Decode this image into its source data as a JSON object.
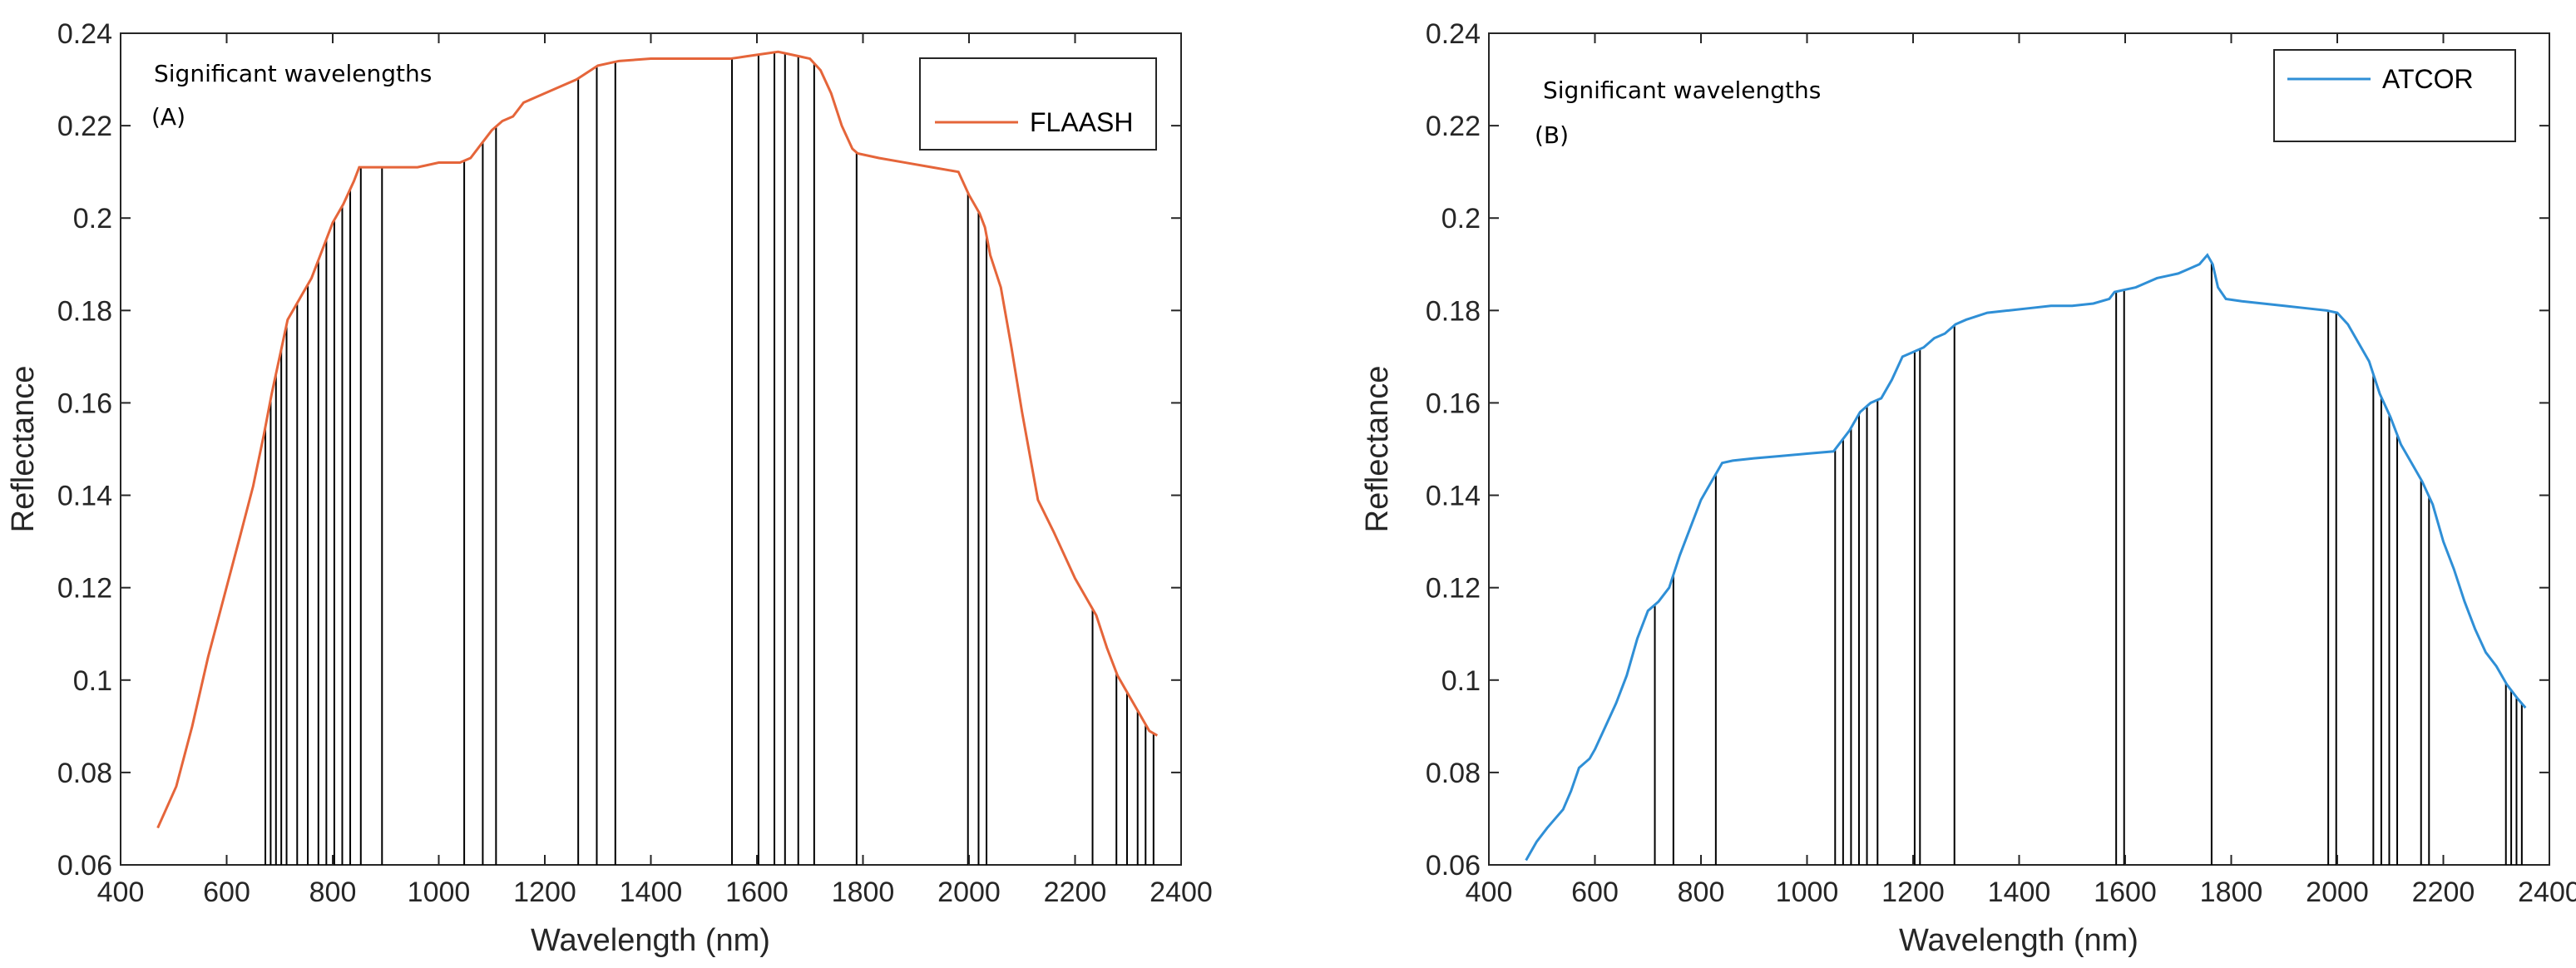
{
  "chart_data": [
    {
      "type": "line",
      "panel_label": "(A)",
      "annotation": "Significant wavelengths",
      "xlabel": "Wavelength (nm)",
      "ylabel": "Reflectance",
      "xlim": [
        400,
        2400
      ],
      "ylim": [
        0.06,
        0.24
      ],
      "xticks": [
        "400",
        "600",
        "800",
        "1000",
        "1200",
        "1400",
        "1600",
        "1800",
        "2000",
        "2200",
        "2400"
      ],
      "yticks": [
        "0.06",
        "0.08",
        "0.1",
        "0.12",
        "0.14",
        "0.16",
        "0.18",
        "0.2",
        "0.22",
        "0.24"
      ],
      "legend": {
        "label": "FLAASH",
        "color": "#E5653A",
        "position": "top-right"
      },
      "series": [
        {
          "name": "FLAASH",
          "color": "#E5653A",
          "x": [
            470,
            505,
            535,
            565,
            595,
            625,
            650,
            670,
            685,
            700,
            715,
            725,
            740,
            760,
            780,
            800,
            820,
            840,
            850,
            880,
            920,
            960,
            1000,
            1040,
            1060,
            1080,
            1100,
            1120,
            1140,
            1160,
            1180,
            1220,
            1260,
            1300,
            1340,
            1400,
            1450,
            1500,
            1550,
            1580,
            1610,
            1640,
            1660,
            1680,
            1700,
            1720,
            1740,
            1760,
            1780,
            1790,
            1830,
            1880,
            1930,
            1980,
            2000,
            2020,
            2030,
            2040,
            2060,
            2080,
            2100,
            2130,
            2160,
            2200,
            2240,
            2260,
            2280,
            2300,
            2320,
            2340,
            2355
          ],
          "y": [
            0.068,
            0.077,
            0.09,
            0.105,
            0.118,
            0.131,
            0.142,
            0.153,
            0.162,
            0.17,
            0.178,
            0.18,
            0.183,
            0.187,
            0.193,
            0.199,
            0.203,
            0.208,
            0.211,
            0.211,
            0.211,
            0.211,
            0.212,
            0.212,
            0.213,
            0.216,
            0.219,
            0.221,
            0.222,
            0.225,
            0.226,
            0.228,
            0.23,
            0.233,
            0.234,
            0.2345,
            0.2345,
            0.2345,
            0.2345,
            0.235,
            0.2355,
            0.236,
            0.2355,
            0.235,
            0.2345,
            0.232,
            0.227,
            0.22,
            0.215,
            0.214,
            0.213,
            0.212,
            0.211,
            0.21,
            0.205,
            0.201,
            0.198,
            0.192,
            0.185,
            0.172,
            0.158,
            0.139,
            0.132,
            0.122,
            0.114,
            0.107,
            0.101,
            0.097,
            0.093,
            0.089,
            0.088
          ]
        }
      ],
      "significant_wavelengths": [
        673,
        683,
        693,
        703,
        713,
        733,
        753,
        773,
        788,
        803,
        818,
        833,
        853,
        893,
        1048,
        1083,
        1108,
        1263,
        1298,
        1333,
        1553,
        1603,
        1633,
        1653,
        1678,
        1708,
        1788,
        1998,
        2018,
        2033,
        2233,
        2278,
        2298,
        2318,
        2333,
        2348
      ]
    },
    {
      "type": "line",
      "panel_label": "(B)",
      "annotation": "Significant wavelengths",
      "xlabel": "Wavelength (nm)",
      "ylabel": "Reflectance",
      "xlim": [
        400,
        2400
      ],
      "ylim": [
        0.06,
        0.24
      ],
      "xticks": [
        "400",
        "600",
        "800",
        "1000",
        "1200",
        "1400",
        "1600",
        "1800",
        "2000",
        "2200",
        "2400"
      ],
      "yticks": [
        "0.06",
        "0.08",
        "0.1",
        "0.12",
        "0.14",
        "0.16",
        "0.18",
        "0.2",
        "0.22",
        "0.24"
      ],
      "legend": {
        "label": "ATCOR",
        "color": "#2F8FD6",
        "position": "top-right"
      },
      "series": [
        {
          "name": "ATCOR",
          "color": "#2F8FD6",
          "x": [
            470,
            490,
            510,
            525,
            540,
            555,
            570,
            580,
            590,
            600,
            620,
            640,
            660,
            680,
            700,
            720,
            740,
            760,
            780,
            800,
            820,
            840,
            860,
            900,
            950,
            1000,
            1050,
            1060,
            1080,
            1100,
            1120,
            1140,
            1160,
            1180,
            1200,
            1220,
            1240,
            1260,
            1280,
            1300,
            1340,
            1380,
            1420,
            1460,
            1500,
            1540,
            1570,
            1580,
            1600,
            1620,
            1640,
            1660,
            1680,
            1700,
            1720,
            1740,
            1755,
            1765,
            1775,
            1790,
            1820,
            1860,
            1900,
            1940,
            1980,
            2000,
            2020,
            2040,
            2060,
            2080,
            2100,
            2120,
            2140,
            2160,
            2180,
            2200,
            2220,
            2240,
            2260,
            2280,
            2300,
            2320,
            2340,
            2355
          ],
          "y": [
            0.061,
            0.065,
            0.068,
            0.07,
            0.072,
            0.076,
            0.081,
            0.082,
            0.083,
            0.085,
            0.09,
            0.095,
            0.101,
            0.109,
            0.115,
            0.117,
            0.12,
            0.127,
            0.133,
            0.139,
            0.143,
            0.147,
            0.1475,
            0.148,
            0.1485,
            0.149,
            0.1495,
            0.151,
            0.154,
            0.158,
            0.16,
            0.161,
            0.165,
            0.17,
            0.171,
            0.172,
            0.174,
            0.175,
            0.177,
            0.178,
            0.1795,
            0.18,
            0.1805,
            0.181,
            0.181,
            0.1815,
            0.1825,
            0.184,
            0.1845,
            0.185,
            0.186,
            0.187,
            0.1875,
            0.188,
            0.189,
            0.19,
            0.192,
            0.19,
            0.185,
            0.1825,
            0.182,
            0.1815,
            0.181,
            0.1805,
            0.18,
            0.1795,
            0.177,
            0.173,
            0.169,
            0.162,
            0.157,
            0.151,
            0.147,
            0.143,
            0.138,
            0.13,
            0.124,
            0.117,
            0.111,
            0.106,
            0.103,
            0.099,
            0.096,
            0.094
          ]
        }
      ],
      "significant_wavelengths": [
        713,
        748,
        828,
        1053,
        1068,
        1083,
        1098,
        1113,
        1133,
        1203,
        1213,
        1278,
        1583,
        1598,
        1763,
        1983,
        1998,
        2068,
        2083,
        2098,
        2113,
        2158,
        2173,
        2318,
        2328,
        2338,
        2348
      ]
    }
  ]
}
